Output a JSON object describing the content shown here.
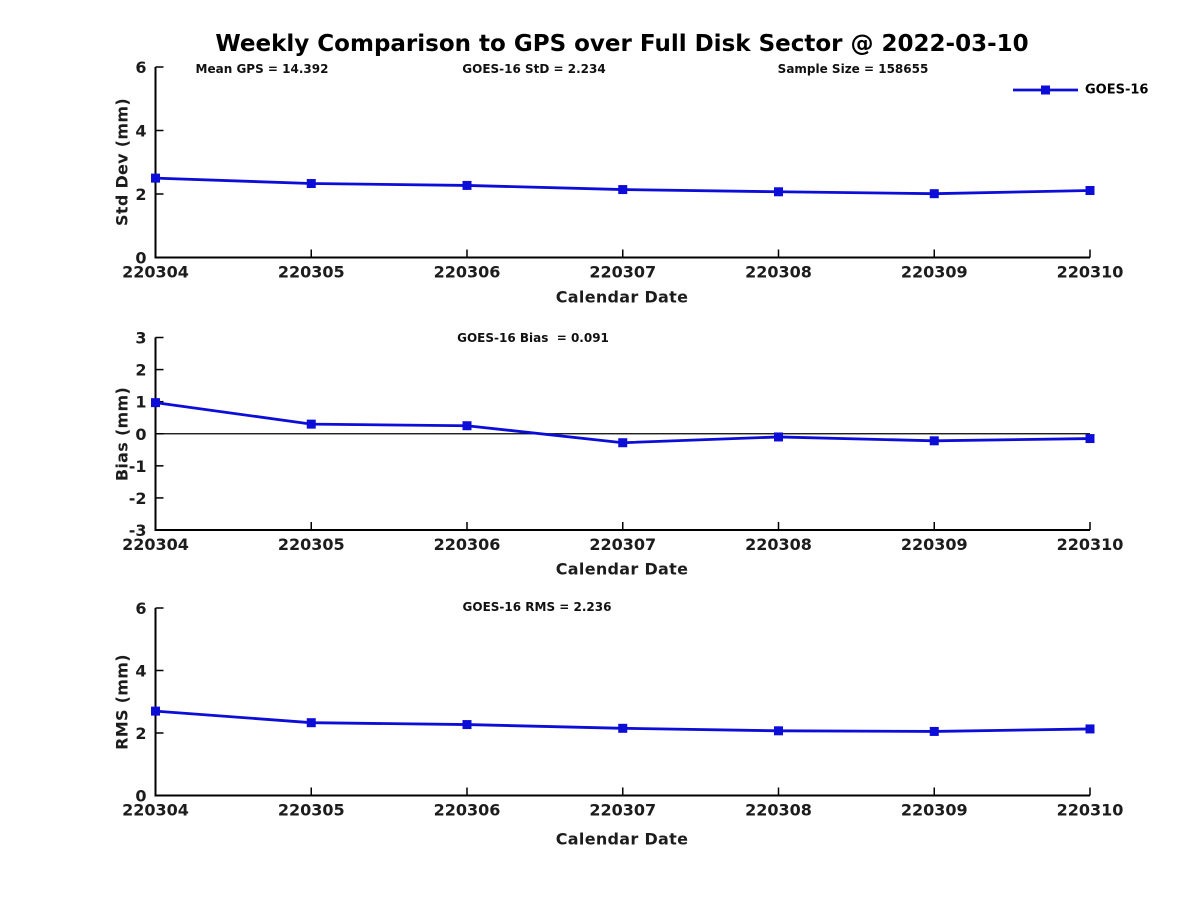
{
  "page": {
    "background": "#ffffff"
  },
  "header": {
    "title": "Weekly Comparison to GPS over Full Disk Sector @ 2022-03-10"
  },
  "colors": {
    "series": "#0d0dd8",
    "axis": "#000000",
    "tick_label": "#1c1c1c"
  },
  "legend": {
    "label": "GOES-16",
    "position": "top-right-outside-first-subplot"
  },
  "chart_data": [
    {
      "type": "line",
      "ylabel": "Std Dev (mm)",
      "xlabel": "Calendar Date",
      "categories": [
        "220304",
        "220305",
        "220306",
        "220307",
        "220308",
        "220309",
        "220310"
      ],
      "series": [
        {
          "name": "GOES-16",
          "marker": "square",
          "color": "#0d0dd8",
          "values": [
            2.5,
            2.33,
            2.27,
            2.14,
            2.07,
            2.01,
            2.11
          ]
        }
      ],
      "ylim": [
        0,
        6
      ],
      "yticks": [
        0,
        2,
        4,
        6
      ],
      "grid": false,
      "zero_line": false,
      "annotations": [
        {
          "text": "Mean GPS = 14.392"
        },
        {
          "text": "GOES-16 StD = 2.234"
        },
        {
          "text": "Sample Size = 158655"
        }
      ]
    },
    {
      "type": "line",
      "ylabel": "Bias (mm)",
      "xlabel": "Calendar Date",
      "categories": [
        "220304",
        "220305",
        "220306",
        "220307",
        "220308",
        "220309",
        "220310"
      ],
      "series": [
        {
          "name": "GOES-16",
          "marker": "square",
          "color": "#0d0dd8",
          "values": [
            0.97,
            0.3,
            0.25,
            -0.28,
            -0.1,
            -0.22,
            -0.15
          ]
        }
      ],
      "ylim": [
        -3,
        3
      ],
      "yticks": [
        -3,
        -2,
        -1,
        0,
        1,
        2,
        3
      ],
      "grid": false,
      "zero_line": true,
      "annotations": [
        {
          "text": "GOES-16 Bias  = 0.091"
        }
      ]
    },
    {
      "type": "line",
      "ylabel": "RMS (mm)",
      "xlabel": "Calendar Date",
      "categories": [
        "220304",
        "220305",
        "220306",
        "220307",
        "220308",
        "220309",
        "220310"
      ],
      "series": [
        {
          "name": "GOES-16",
          "marker": "square",
          "color": "#0d0dd8",
          "values": [
            2.7,
            2.33,
            2.27,
            2.15,
            2.07,
            2.05,
            2.13
          ]
        }
      ],
      "ylim": [
        0,
        6
      ],
      "yticks": [
        0,
        2,
        4,
        6
      ],
      "grid": false,
      "zero_line": false,
      "annotations": [
        {
          "text": "GOES-16 RMS = 2.236"
        }
      ]
    }
  ]
}
